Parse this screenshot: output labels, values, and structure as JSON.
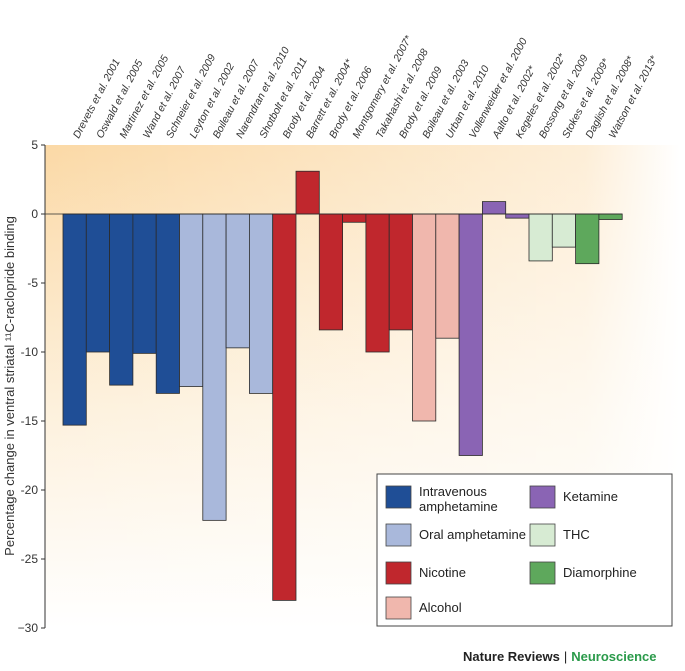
{
  "chart_data": {
    "type": "bar",
    "title": "",
    "xlabel": "",
    "ylabel": "Percentage change in ventral striatal ¹¹C-raclopride binding",
    "ylim": [
      -30,
      5
    ],
    "yticks": [
      5,
      0,
      -5,
      -10,
      -15,
      -20,
      -25,
      -30
    ],
    "ytick_labels": [
      "5",
      "0",
      "-5",
      "-10",
      "-15",
      "-20",
      "-25",
      "−30"
    ],
    "categories": [
      "Drevets et al. 2001",
      "Oswald et al. 2005",
      "Martinez et al. 2005",
      "Wand et al. 2007",
      "Schneier et al. 2009",
      "Leyton et al. 2002",
      "Boileau et al. 2007",
      "Narendran et al. 2010",
      "Shotbolt et al. 2011",
      "Brody et al. 2004",
      "Barrett et al. 2004*",
      "Brody et al. 2006",
      "Montgomery et al. 2007*",
      "Takahashi et al. 2008",
      "Brody et al. 2009",
      "Boileau et al. 2003",
      "Urban et al. 2010",
      "Vollenweider et al. 2000",
      "Aalto et al. 2002*",
      "Kegeles et al. 2002*",
      "Bossong et al. 2009",
      "Stokes et al. 2009*",
      "Daglish et al. 2008*",
      "Watson et al. 2013*"
    ],
    "values": [
      -15.3,
      -10.0,
      -12.4,
      -10.1,
      -13.0,
      -12.5,
      -22.2,
      -9.7,
      -13.0,
      -28.0,
      3.1,
      -8.4,
      -0.6,
      -10.0,
      -8.4,
      -15.0,
      -9.0,
      -17.5,
      0.9,
      -0.3,
      -3.4,
      -2.4,
      -3.6,
      -0.4
    ],
    "groups": [
      "Intravenous amphetamine",
      "Intravenous amphetamine",
      "Intravenous amphetamine",
      "Intravenous amphetamine",
      "Intravenous amphetamine",
      "Oral amphetamine",
      "Oral amphetamine",
      "Oral amphetamine",
      "Oral amphetamine",
      "Nicotine",
      "Nicotine",
      "Nicotine",
      "Nicotine",
      "Nicotine",
      "Nicotine",
      "Alcohol",
      "Alcohol",
      "Ketamine",
      "Ketamine",
      "Ketamine",
      "THC",
      "THC",
      "Diamorphine",
      "Diamorphine"
    ],
    "legend": {
      "placement": "bottom-right",
      "entries": [
        {
          "label": "Intravenous amphetamine",
          "color": "#1f4e96"
        },
        {
          "label": "Oral amphetamine",
          "color": "#a9b8db"
        },
        {
          "label": "Nicotine",
          "color": "#c0272d"
        },
        {
          "label": "Alcohol",
          "color": "#f0b7ad"
        },
        {
          "label": "Ketamine",
          "color": "#8a64b4"
        },
        {
          "label": "THC",
          "color": "#d7ebd3"
        },
        {
          "label": "Diamorphine",
          "color": "#5ea85c"
        }
      ]
    },
    "grid": false,
    "background_gradient": [
      "#fbd9a6",
      "#ffffff"
    ]
  },
  "credit": {
    "publisher": "Nature Reviews",
    "separator": "|",
    "journal": "Neuroscience"
  }
}
